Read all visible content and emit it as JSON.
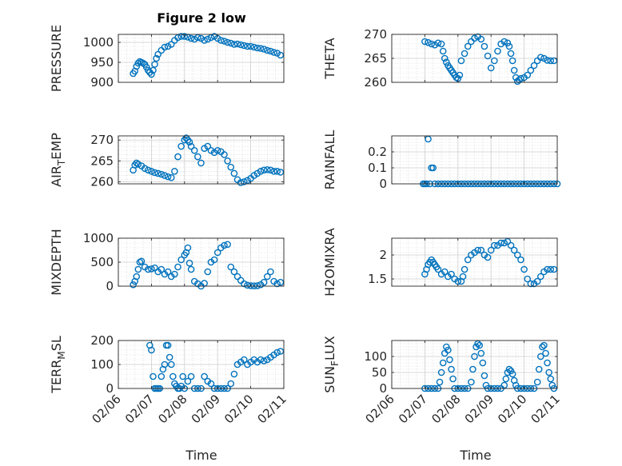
{
  "figure": {
    "title": "Figure 2 low",
    "xlabel": "Time",
    "xticks": [
      "02/06",
      "02/07",
      "02/08",
      "02/09",
      "02/10",
      "02/11"
    ]
  },
  "chart_data": [
    {
      "type": "scatter",
      "ylabel": "PRESSURE",
      "ylim": [
        900,
        1020
      ],
      "yticks": [
        900,
        950,
        1000
      ],
      "xlim": [
        0,
        5
      ],
      "x": [
        0.45,
        0.5,
        0.55,
        0.6,
        0.65,
        0.7,
        0.75,
        0.8,
        0.85,
        0.9,
        0.95,
        1.0,
        1.05,
        1.1,
        1.15,
        1.2,
        1.3,
        1.4,
        1.5,
        1.6,
        1.7,
        1.8,
        1.9,
        2.0,
        2.1,
        2.2,
        2.3,
        2.4,
        2.5,
        2.6,
        2.7,
        2.8,
        2.9,
        3.0,
        3.1,
        3.2,
        3.3,
        3.4,
        3.5,
        3.6,
        3.7,
        3.8,
        3.9,
        4.0,
        4.1,
        4.2,
        4.3,
        4.4,
        4.5,
        4.6,
        4.7,
        4.8,
        4.9
      ],
      "y": [
        922,
        928,
        940,
        948,
        952,
        950,
        948,
        945,
        938,
        930,
        925,
        920,
        930,
        945,
        960,
        970,
        980,
        988,
        990,
        995,
        1005,
        1012,
        1015,
        1015,
        1013,
        1010,
        1008,
        1012,
        1010,
        1005,
        1008,
        1012,
        1015,
        1010,
        1005,
        1003,
        1000,
        998,
        995,
        996,
        994,
        992,
        990,
        990,
        988,
        986,
        985,
        983,
        980,
        978,
        975,
        973,
        968
      ]
    },
    {
      "type": "scatter",
      "ylabel": "THETA",
      "ylim": [
        260,
        270
      ],
      "yticks": [
        260,
        265,
        270
      ],
      "xlim": [
        0,
        5
      ],
      "x": [
        1.0,
        1.1,
        1.2,
        1.3,
        1.4,
        1.5,
        1.55,
        1.6,
        1.65,
        1.7,
        1.75,
        1.8,
        1.85,
        1.9,
        1.95,
        2.0,
        2.05,
        2.1,
        2.2,
        2.3,
        2.4,
        2.5,
        2.6,
        2.7,
        2.8,
        2.9,
        3.0,
        3.1,
        3.2,
        3.3,
        3.4,
        3.5,
        3.55,
        3.6,
        3.65,
        3.7,
        3.75,
        3.8,
        3.85,
        3.9,
        4.0,
        4.1,
        4.2,
        4.3,
        4.4,
        4.5,
        4.6,
        4.7,
        4.8,
        4.9
      ],
      "y": [
        268.5,
        268.3,
        268.0,
        267.8,
        268.2,
        268.0,
        266.5,
        265.0,
        264.2,
        263.5,
        263.0,
        262.5,
        262.0,
        261.5,
        261.0,
        260.8,
        261.5,
        264.5,
        266.0,
        267.5,
        268.5,
        269.2,
        269.5,
        269.0,
        267.5,
        265.5,
        263.0,
        264.5,
        266.5,
        268.0,
        268.5,
        268.2,
        267.5,
        266.0,
        264.5,
        262.5,
        261.0,
        260.2,
        260.5,
        260.8,
        261.0,
        261.5,
        262.5,
        263.5,
        264.5,
        265.2,
        265.0,
        264.6,
        264.5,
        264.5
      ]
    },
    {
      "type": "scatter",
      "ylabel": "AIR_TEMP",
      "ylim": [
        259.5,
        271
      ],
      "yticks": [
        260,
        265,
        270
      ],
      "xlim": [
        0,
        5
      ],
      "x": [
        0.45,
        0.5,
        0.55,
        0.6,
        0.7,
        0.8,
        0.9,
        1.0,
        1.1,
        1.2,
        1.3,
        1.4,
        1.5,
        1.6,
        1.7,
        1.8,
        1.9,
        2.0,
        2.05,
        2.1,
        2.15,
        2.2,
        2.3,
        2.4,
        2.5,
        2.6,
        2.7,
        2.8,
        2.9,
        3.0,
        3.1,
        3.2,
        3.3,
        3.4,
        3.5,
        3.6,
        3.7,
        3.8,
        3.9,
        4.0,
        4.1,
        4.2,
        4.3,
        4.4,
        4.5,
        4.6,
        4.7,
        4.8,
        4.9
      ],
      "y": [
        262.8,
        264.0,
        264.5,
        264.2,
        263.8,
        263.2,
        262.8,
        262.5,
        262.2,
        262.0,
        261.8,
        261.5,
        261.2,
        261.0,
        262.5,
        266.0,
        268.5,
        270.0,
        270.5,
        270.0,
        269.5,
        268.5,
        267.5,
        266.0,
        264.5,
        268.0,
        268.5,
        267.5,
        267.0,
        267.5,
        267.2,
        266.5,
        265.0,
        263.5,
        262.0,
        260.5,
        259.8,
        260.0,
        260.3,
        260.8,
        261.5,
        262.0,
        262.5,
        262.8,
        262.9,
        262.8,
        262.5,
        262.5,
        262.3
      ]
    },
    {
      "type": "scatter",
      "ylabel": "RAINFALL",
      "ylim": [
        0,
        0.3
      ],
      "yticks": [
        0,
        0.1,
        0.2
      ],
      "xlim": [
        0,
        5
      ],
      "x": [
        0.95,
        1.0,
        1.05,
        1.1,
        1.15,
        1.2,
        1.25,
        1.3,
        1.4,
        1.5,
        1.6,
        1.7,
        1.8,
        1.9,
        2.0,
        2.1,
        2.2,
        2.3,
        2.4,
        2.5,
        2.6,
        2.7,
        2.8,
        2.9,
        3.0,
        3.1,
        3.2,
        3.3,
        3.4,
        3.5,
        3.6,
        3.7,
        3.8,
        3.9,
        4.0,
        4.1,
        4.2,
        4.3,
        4.4,
        4.5,
        4.6,
        4.7,
        4.8,
        4.9,
        5.0
      ],
      "y": [
        0,
        0,
        0,
        0.28,
        0,
        0.1,
        0.1,
        0,
        0,
        0,
        0,
        0,
        0,
        0,
        0,
        0,
        0,
        0,
        0,
        0,
        0,
        0,
        0,
        0,
        0,
        0,
        0,
        0,
        0,
        0,
        0,
        0,
        0,
        0,
        0,
        0,
        0,
        0,
        0,
        0,
        0,
        0,
        0,
        0,
        0
      ]
    },
    {
      "type": "scatter",
      "ylabel": "MIXDEPTH",
      "ylim": [
        0,
        1000
      ],
      "yticks": [
        0,
        500,
        1000
      ],
      "xlim": [
        0,
        5
      ],
      "x": [
        0.45,
        0.5,
        0.55,
        0.6,
        0.65,
        0.7,
        0.8,
        0.9,
        1.0,
        1.1,
        1.2,
        1.3,
        1.4,
        1.5,
        1.6,
        1.7,
        1.8,
        1.9,
        2.0,
        2.05,
        2.1,
        2.15,
        2.2,
        2.3,
        2.4,
        2.5,
        2.6,
        2.7,
        2.8,
        2.9,
        3.0,
        3.1,
        3.2,
        3.3,
        3.4,
        3.5,
        3.6,
        3.7,
        3.8,
        3.9,
        4.0,
        4.1,
        4.2,
        4.3,
        4.4,
        4.5,
        4.6,
        4.7,
        4.8,
        4.9
      ],
      "y": [
        30,
        100,
        200,
        350,
        500,
        520,
        400,
        350,
        360,
        380,
        300,
        350,
        250,
        300,
        200,
        250,
        400,
        550,
        650,
        700,
        800,
        480,
        350,
        100,
        50,
        0,
        60,
        300,
        500,
        550,
        700,
        800,
        850,
        870,
        400,
        300,
        200,
        120,
        50,
        20,
        10,
        5,
        10,
        30,
        80,
        200,
        300,
        100,
        50,
        80
      ]
    },
    {
      "type": "scatter",
      "ylabel": "H2OMIXRA",
      "ylim": [
        1.35,
        2.35
      ],
      "yticks": [
        1.5,
        2
      ],
      "xlim": [
        0,
        5
      ],
      "x": [
        1.0,
        1.05,
        1.1,
        1.15,
        1.2,
        1.25,
        1.3,
        1.35,
        1.4,
        1.5,
        1.6,
        1.7,
        1.8,
        1.9,
        2.0,
        2.1,
        2.15,
        2.2,
        2.3,
        2.4,
        2.5,
        2.6,
        2.7,
        2.8,
        2.9,
        3.0,
        3.1,
        3.2,
        3.3,
        3.4,
        3.5,
        3.6,
        3.7,
        3.8,
        3.9,
        4.0,
        4.1,
        4.2,
        4.3,
        4.4,
        4.5,
        4.6,
        4.7,
        4.8,
        4.9
      ],
      "y": [
        1.6,
        1.7,
        1.8,
        1.85,
        1.9,
        1.85,
        1.8,
        1.75,
        1.7,
        1.6,
        1.65,
        1.55,
        1.6,
        1.5,
        1.45,
        1.45,
        1.55,
        1.7,
        1.9,
        2.0,
        2.05,
        2.1,
        2.1,
        2.0,
        1.95,
        2.1,
        2.2,
        2.2,
        2.25,
        2.25,
        2.28,
        2.2,
        2.1,
        2.0,
        1.9,
        1.7,
        1.5,
        1.4,
        1.4,
        1.45,
        1.55,
        1.65,
        1.7,
        1.7,
        1.7
      ]
    },
    {
      "type": "scatter",
      "ylabel": "TERR_MSL",
      "ylim": [
        0,
        200
      ],
      "yticks": [
        0,
        100,
        200
      ],
      "xlim": [
        0,
        5
      ],
      "x": [
        0.95,
        1.0,
        1.05,
        1.1,
        1.15,
        1.2,
        1.25,
        1.3,
        1.35,
        1.4,
        1.45,
        1.5,
        1.55,
        1.6,
        1.65,
        1.7,
        1.75,
        1.8,
        1.85,
        1.9,
        1.95,
        2.0,
        2.1,
        2.2,
        2.3,
        2.4,
        2.5,
        2.6,
        2.7,
        2.8,
        2.9,
        3.0,
        3.1,
        3.2,
        3.3,
        3.4,
        3.5,
        3.6,
        3.7,
        3.8,
        3.9,
        4.0,
        4.1,
        4.2,
        4.3,
        4.4,
        4.5,
        4.6,
        4.7,
        4.8,
        4.9
      ],
      "y": [
        180,
        160,
        50,
        0,
        0,
        0,
        0,
        50,
        80,
        100,
        180,
        180,
        130,
        100,
        50,
        20,
        10,
        0,
        0,
        10,
        50,
        0,
        30,
        50,
        0,
        0,
        0,
        50,
        30,
        20,
        0,
        0,
        0,
        0,
        0,
        20,
        60,
        100,
        110,
        120,
        100,
        110,
        120,
        110,
        120,
        115,
        120,
        130,
        140,
        150,
        155
      ]
    },
    {
      "type": "scatter",
      "ylabel": "SUN_FLUX",
      "ylim": [
        0,
        150
      ],
      "yticks": [
        0,
        50,
        100
      ],
      "xlim": [
        0,
        5
      ],
      "x": [
        1.0,
        1.1,
        1.2,
        1.3,
        1.4,
        1.45,
        1.5,
        1.55,
        1.6,
        1.65,
        1.7,
        1.75,
        1.8,
        1.85,
        1.9,
        2.0,
        2.1,
        2.2,
        2.3,
        2.4,
        2.45,
        2.5,
        2.55,
        2.6,
        2.65,
        2.7,
        2.75,
        2.8,
        2.85,
        2.9,
        3.0,
        3.1,
        3.2,
        3.3,
        3.4,
        3.45,
        3.5,
        3.55,
        3.6,
        3.65,
        3.7,
        3.75,
        3.8,
        3.9,
        4.0,
        4.1,
        4.2,
        4.3,
        4.4,
        4.45,
        4.5,
        4.55,
        4.6,
        4.65,
        4.7,
        4.75,
        4.8,
        4.85,
        4.9
      ],
      "y": [
        0,
        0,
        0,
        0,
        0,
        20,
        50,
        80,
        110,
        130,
        120,
        90,
        60,
        30,
        0,
        0,
        0,
        0,
        0,
        20,
        60,
        100,
        130,
        140,
        135,
        110,
        80,
        40,
        10,
        0,
        0,
        0,
        0,
        0,
        10,
        30,
        50,
        60,
        55,
        45,
        25,
        10,
        0,
        0,
        0,
        0,
        0,
        0,
        20,
        60,
        100,
        130,
        135,
        110,
        80,
        50,
        30,
        10,
        0
      ]
    }
  ]
}
